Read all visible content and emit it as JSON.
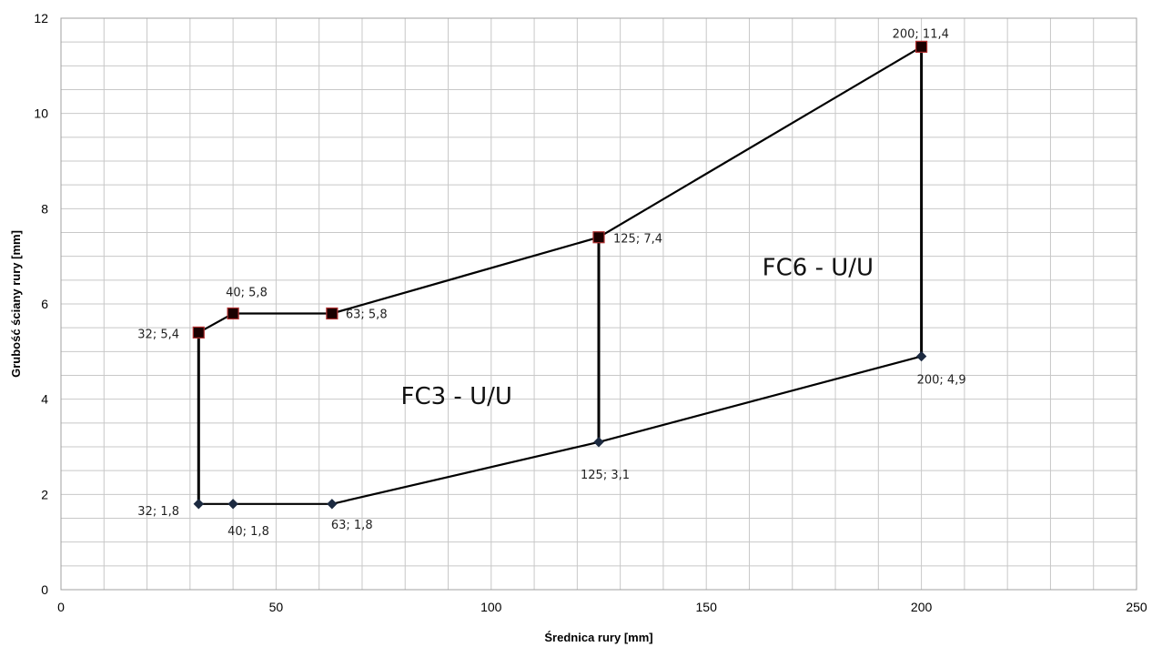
{
  "chart_data": {
    "type": "line",
    "title": "",
    "xlabel": "Średnica rury [mm]",
    "ylabel": "Grubość ściany rury [mm]",
    "xlim": [
      0,
      250
    ],
    "ylim": [
      0,
      12
    ],
    "x_ticks": [
      0,
      50,
      100,
      150,
      200,
      250
    ],
    "y_ticks": [
      0,
      2,
      4,
      6,
      8,
      10,
      12
    ],
    "grid": true,
    "series": [
      {
        "marker": "square",
        "color": "#000000",
        "points": [
          {
            "x": 32,
            "y": 5.4,
            "label": "32; 5,4"
          },
          {
            "x": 40,
            "y": 5.8,
            "label": "40; 5,8"
          },
          {
            "x": 63,
            "y": 5.8,
            "label": "63; 5,8"
          },
          {
            "x": 125,
            "y": 7.4,
            "label": "125; 7,4"
          },
          {
            "x": 200,
            "y": 11.4,
            "label": "200; 11,4"
          }
        ]
      },
      {
        "marker": "diamond",
        "color": "#000000",
        "points": [
          {
            "x": 32,
            "y": 1.8,
            "label": "32; 1,8"
          },
          {
            "x": 40,
            "y": 1.8,
            "label": "40; 1,8"
          },
          {
            "x": 63,
            "y": 1.8,
            "label": "63; 1,8"
          },
          {
            "x": 125,
            "y": 3.1,
            "label": "125; 3,1"
          },
          {
            "x": 200,
            "y": 4.9,
            "label": "200; 4,9"
          }
        ]
      }
    ],
    "connectors": [
      {
        "x": 32,
        "y_from": 1.8,
        "y_to": 5.4
      },
      {
        "x": 125,
        "y_from": 3.1,
        "y_to": 7.4
      },
      {
        "x": 200,
        "y_from": 4.9,
        "y_to": 11.4
      }
    ],
    "annotations": [
      {
        "text": "FC3 - U/U",
        "x": 79,
        "y": 3.9
      },
      {
        "text": "FC6 - U/U",
        "x": 163,
        "y": 6.6
      }
    ]
  }
}
